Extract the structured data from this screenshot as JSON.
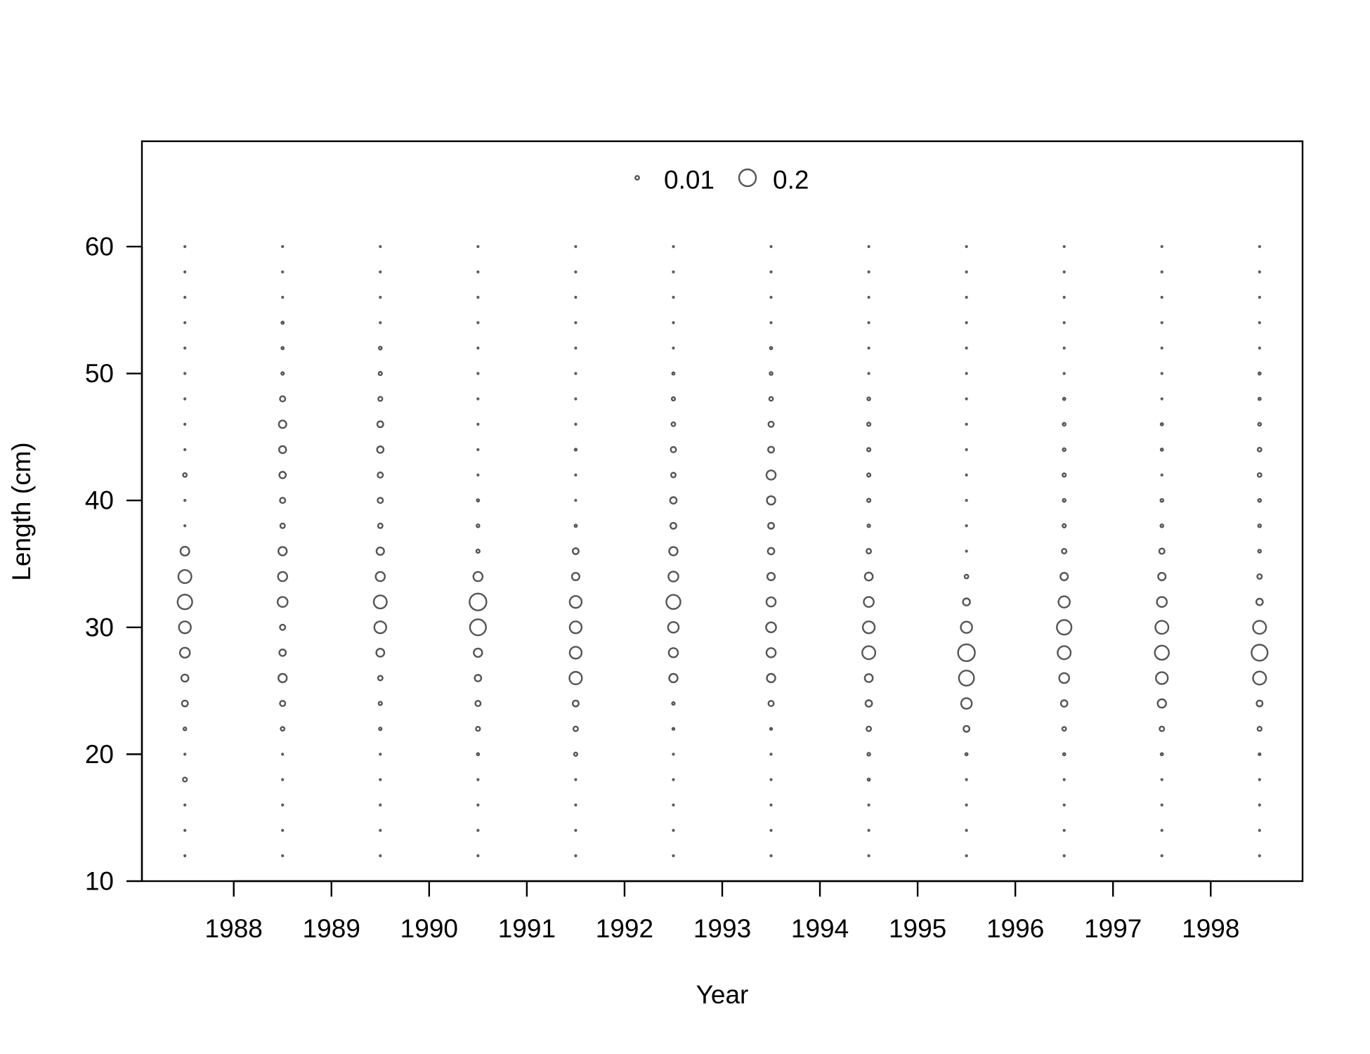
{
  "chart_data": {
    "type": "scatter",
    "xlabel": "Year",
    "ylabel": "Length (cm)",
    "x_ticks": [
      1988,
      1989,
      1990,
      1991,
      1992,
      1993,
      1994,
      1995,
      1996,
      1997,
      1998
    ],
    "y_ticks": [
      10,
      20,
      30,
      40,
      50,
      60
    ],
    "xlim": [
      1987.06,
      1998.94
    ],
    "ylim": [
      10,
      68.3
    ],
    "lengths": [
      12,
      14,
      16,
      18,
      20,
      22,
      24,
      26,
      28,
      30,
      32,
      34,
      36,
      38,
      40,
      42,
      44,
      46,
      48,
      50,
      52,
      54,
      56,
      58,
      60
    ],
    "legend": {
      "position": "top-center",
      "entries": [
        {
          "label": "0.01",
          "value": 0.01
        },
        {
          "label": "0.2",
          "value": 0.2
        }
      ]
    },
    "size_scale": {
      "ref_value": 0.2,
      "ref_radius": 12
    },
    "series": [
      {
        "year": 1987.5,
        "values": [
          0.001,
          0.001,
          0.001,
          0.012,
          0.001,
          0.006,
          0.025,
          0.036,
          0.07,
          0.1,
          0.15,
          0.12,
          0.055,
          0.001,
          0.001,
          0.01,
          0.001,
          0.001,
          0.001,
          0.001,
          0.001,
          0.001,
          0.001,
          0.001,
          0.001
        ]
      },
      {
        "year": 1988.5,
        "values": [
          0.001,
          0.001,
          0.001,
          0.001,
          0.001,
          0.01,
          0.02,
          0.05,
          0.03,
          0.02,
          0.07,
          0.06,
          0.05,
          0.015,
          0.02,
          0.03,
          0.035,
          0.04,
          0.02,
          0.005,
          0.004,
          0.004,
          0.001,
          0.001,
          0.001
        ]
      },
      {
        "year": 1989.5,
        "values": [
          0.001,
          0.001,
          0.001,
          0.001,
          0.001,
          0.005,
          0.008,
          0.015,
          0.045,
          0.1,
          0.12,
          0.06,
          0.04,
          0.015,
          0.02,
          0.02,
          0.03,
          0.025,
          0.012,
          0.008,
          0.006,
          0.001,
          0.001,
          0.001,
          0.001
        ]
      },
      {
        "year": 1990.5,
        "values": [
          0.001,
          0.001,
          0.001,
          0.001,
          0.004,
          0.012,
          0.02,
          0.03,
          0.05,
          0.18,
          0.2,
          0.06,
          0.008,
          0.006,
          0.004,
          0.001,
          0.001,
          0.001,
          0.001,
          0.001,
          0.001,
          0.001,
          0.001,
          0.001,
          0.001
        ]
      },
      {
        "year": 1991.5,
        "values": [
          0.001,
          0.001,
          0.001,
          0.001,
          0.008,
          0.015,
          0.025,
          0.11,
          0.1,
          0.1,
          0.1,
          0.04,
          0.025,
          0.004,
          0.001,
          0.001,
          0.003,
          0.001,
          0.001,
          0.001,
          0.001,
          0.001,
          0.001,
          0.001,
          0.001
        ]
      },
      {
        "year": 1992.5,
        "values": [
          0.001,
          0.001,
          0.001,
          0.001,
          0.001,
          0.003,
          0.005,
          0.05,
          0.06,
          0.08,
          0.14,
          0.07,
          0.05,
          0.025,
          0.03,
          0.015,
          0.02,
          0.01,
          0.008,
          0.004,
          0.001,
          0.001,
          0.001,
          0.001,
          0.001
        ]
      },
      {
        "year": 1993.5,
        "values": [
          0.001,
          0.001,
          0.001,
          0.001,
          0.001,
          0.003,
          0.02,
          0.05,
          0.06,
          0.07,
          0.06,
          0.04,
          0.03,
          0.025,
          0.05,
          0.06,
          0.025,
          0.02,
          0.01,
          0.006,
          0.004,
          0.001,
          0.001,
          0.001,
          0.001
        ]
      },
      {
        "year": 1994.5,
        "values": [
          0.001,
          0.001,
          0.001,
          0.004,
          0.006,
          0.015,
          0.03,
          0.045,
          0.12,
          0.1,
          0.07,
          0.045,
          0.015,
          0.005,
          0.008,
          0.008,
          0.008,
          0.008,
          0.006,
          0.001,
          0.001,
          0.001,
          0.001,
          0.001,
          0.001
        ]
      },
      {
        "year": 1995.5,
        "values": [
          0.001,
          0.001,
          0.001,
          0.001,
          0.004,
          0.025,
          0.08,
          0.16,
          0.2,
          0.09,
          0.035,
          0.01,
          0.001,
          0.001,
          0.001,
          0.001,
          0.001,
          0.001,
          0.001,
          0.001,
          0.001,
          0.001,
          0.001,
          0.001,
          0.001
        ]
      },
      {
        "year": 1996.5,
        "values": [
          0.001,
          0.001,
          0.001,
          0.001,
          0.004,
          0.01,
          0.03,
          0.07,
          0.12,
          0.15,
          0.09,
          0.04,
          0.015,
          0.008,
          0.006,
          0.008,
          0.006,
          0.006,
          0.004,
          0.001,
          0.001,
          0.001,
          0.001,
          0.001,
          0.001
        ]
      },
      {
        "year": 1997.5,
        "values": [
          0.001,
          0.001,
          0.001,
          0.001,
          0.004,
          0.015,
          0.05,
          0.1,
          0.14,
          0.12,
          0.07,
          0.04,
          0.02,
          0.006,
          0.006,
          0.001,
          0.004,
          0.004,
          0.001,
          0.001,
          0.001,
          0.001,
          0.001,
          0.001,
          0.001
        ]
      },
      {
        "year": 1998.5,
        "values": [
          0.001,
          0.001,
          0.001,
          0.001,
          0.003,
          0.012,
          0.025,
          0.12,
          0.18,
          0.12,
          0.03,
          0.015,
          0.006,
          0.006,
          0.006,
          0.01,
          0.01,
          0.006,
          0.004,
          0.004,
          0.001,
          0.001,
          0.001,
          0.001,
          0.001
        ]
      }
    ]
  }
}
